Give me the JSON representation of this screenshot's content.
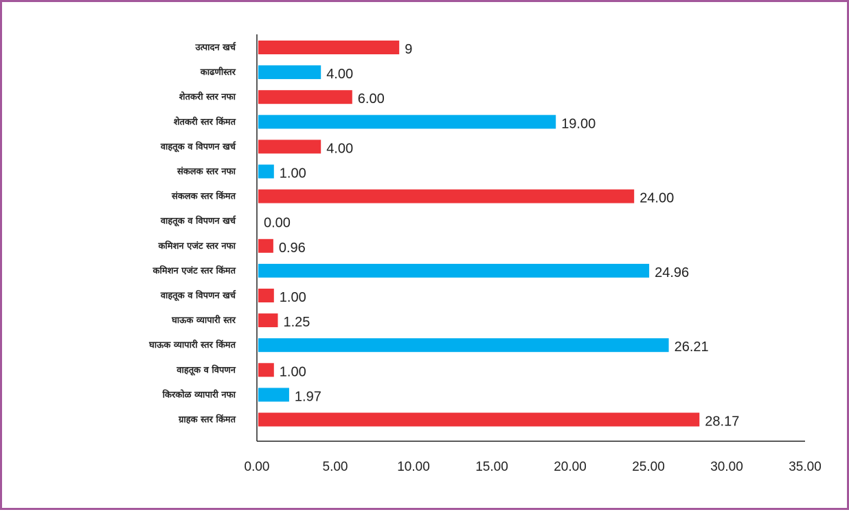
{
  "colors": {
    "frame": "#a3579b",
    "red": "#ee3338",
    "blue": "#00aeef",
    "axis": "#222222"
  },
  "chart_data": {
    "type": "bar",
    "orientation": "horizontal",
    "title": "",
    "xlabel": "",
    "ylabel": "",
    "xlim": [
      0,
      35
    ],
    "grid": false,
    "legend": "none",
    "x_ticks": [
      "0.00",
      "5.00",
      "10.00",
      "15.00",
      "20.00",
      "25.00",
      "30.00",
      "35.00"
    ],
    "categories": [
      "उत्पादन खर्च",
      "काढणीस्तर",
      "शेतकरी स्तर नफा",
      "शेतकरी स्तर किंमत",
      "वाहतूक व विपणन खर्च",
      "संकलक स्तर नफा",
      "संकलक स्तर किंमत",
      "वाहतूक व विपणन खर्च",
      "कमिशन एजंट स्तर नफा",
      "कमिशन एजंट स्तर किंमत",
      "वाहतूक व विपणन खर्च",
      "घाऊक व्यापारी स्तर",
      "घाऊक व्यापारी स्तर किंमत",
      "वाहतूक व विपणन",
      "किरकोळ व्यापारी नफा",
      "ग्राहक स्तर किंमत"
    ],
    "values": [
      9,
      4.0,
      6.0,
      19.0,
      4.0,
      1.0,
      24.0,
      0.0,
      0.96,
      24.96,
      1.0,
      1.25,
      26.21,
      1.0,
      1.97,
      28.17
    ],
    "value_labels": [
      "9",
      "4.00",
      "6.00",
      "19.00",
      "4.00",
      "1.00",
      "24.00",
      "0.00",
      "0.96",
      "24.96",
      "1.00",
      "1.25",
      "26.21",
      "1.00",
      "1.97",
      "28.17"
    ],
    "bar_colors": [
      "red",
      "blue",
      "red",
      "blue",
      "red",
      "blue",
      "red",
      "red",
      "red",
      "blue",
      "red",
      "red",
      "blue",
      "red",
      "blue",
      "red"
    ]
  }
}
